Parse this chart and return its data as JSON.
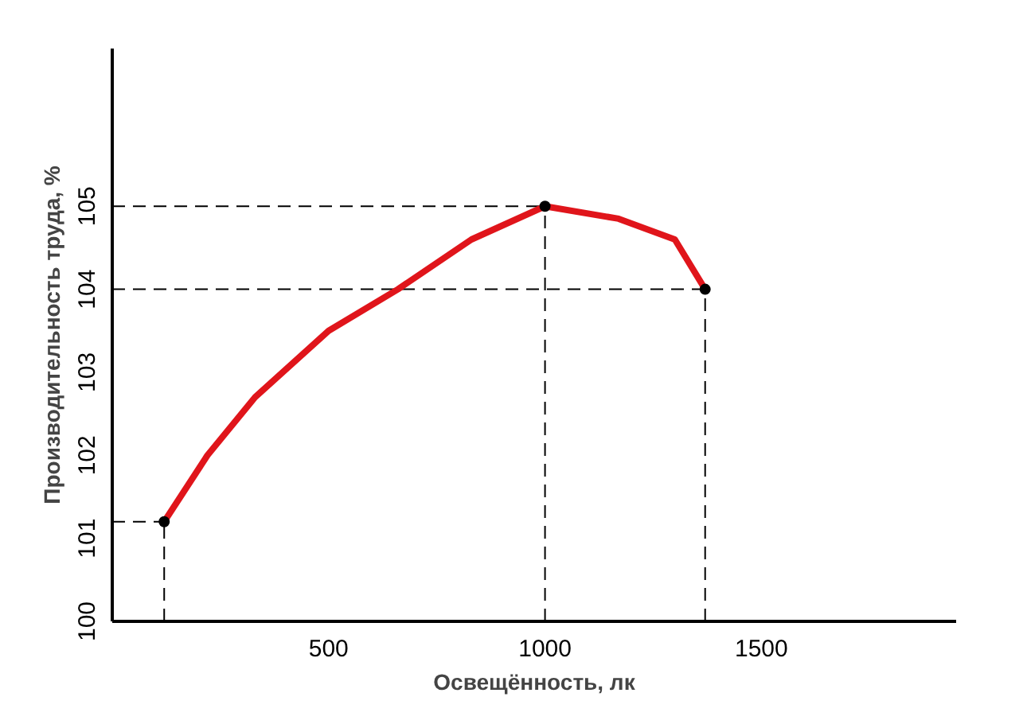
{
  "chart_data": {
    "type": "line",
    "xlabel": "Освещённость, лк",
    "ylabel": "Производительность труда, %",
    "series": [
      {
        "color": "#e0151b",
        "x": [
          120,
          220,
          330,
          500,
          660,
          830,
          1000,
          1170,
          1300,
          1370
        ],
        "values": [
          101.2,
          102.0,
          102.7,
          103.5,
          104.0,
          104.6,
          105,
          104.85,
          104.6,
          104
        ]
      },
      {
        "line_style": "dashed",
        "color": "#000000",
        "x": [
          0,
          120
        ],
        "values": [
          101.2,
          101.2
        ]
      },
      {
        "type": "scatter",
        "marker": "circle",
        "color": "#000000",
        "x": [
          120,
          1000,
          1370
        ],
        "values": [
          101.2,
          105,
          104
        ]
      }
    ],
    "xlim": [
      0,
      1950
    ],
    "ylim": [
      100,
      106.9
    ],
    "xticks": [
      500,
      1000,
      1500
    ],
    "yticks": [
      100,
      101,
      102,
      103,
      104,
      105
    ],
    "ref_lines": [
      {
        "axis": "y",
        "value": 105,
        "line_style": "dashed",
        "color": "#000000"
      },
      {
        "axis": "y",
        "value": 104,
        "line_style": "dashed",
        "color": "#000000"
      },
      {
        "axis": "x",
        "value": 120,
        "line_style": "dashed",
        "color": "#000000"
      },
      {
        "axis": "x",
        "value": 1000,
        "line_style": "dashed",
        "color": "#000000"
      },
      {
        "axis": "x",
        "value": 1370,
        "line_style": "dashed",
        "color": "#000000"
      }
    ],
    "grid": false,
    "marker": "none",
    "line_style": "solid"
  }
}
